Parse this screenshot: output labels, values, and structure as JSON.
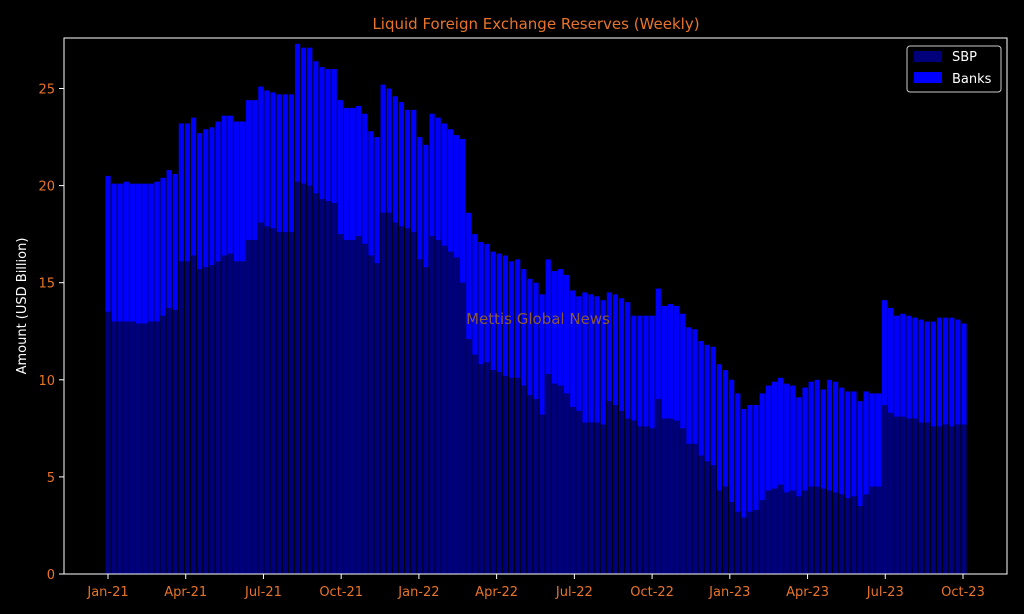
{
  "chart_data": {
    "type": "bar",
    "stacked": true,
    "title": "Liquid Foreign Exchange Reserves (Weekly)",
    "xlabel": "",
    "ylabel": "Amount (USD Billion)",
    "ylim": [
      0,
      27.6
    ],
    "yticks": [
      0,
      5,
      10,
      15,
      20,
      25
    ],
    "xtick_labels": [
      "Jan-21",
      "Apr-21",
      "Jul-21",
      "Oct-21",
      "Jan-22",
      "Apr-22",
      "Jul-22",
      "Oct-22",
      "Jan-23",
      "Apr-23",
      "Jul-23",
      "Oct-23"
    ],
    "legend_position": "top-right",
    "grid": false,
    "watermark": "Mettis Global News",
    "colors": {
      "background": "#000000",
      "axes": "#ffffff",
      "title": "#e8742a",
      "ticks": "#e8742a",
      "watermark": "#8a5a3a",
      "sbp": "#00007a",
      "banks": "#0000ff"
    },
    "series": [
      {
        "name": "SBP",
        "values": [
          13.5,
          13.0,
          13.0,
          13.0,
          13.0,
          12.9,
          12.9,
          13.0,
          13.0,
          13.3,
          13.7,
          13.6,
          16.1,
          16.1,
          16.4,
          15.7,
          15.8,
          15.9,
          16.1,
          16.4,
          16.5,
          16.1,
          16.1,
          17.2,
          17.2,
          18.1,
          17.9,
          17.8,
          17.6,
          17.6,
          17.6,
          20.2,
          20.1,
          20.0,
          19.6,
          19.3,
          19.2,
          19.1,
          17.5,
          17.2,
          17.2,
          17.4,
          17.0,
          16.4,
          16.0,
          18.6,
          18.6,
          18.1,
          17.9,
          17.8,
          17.6,
          16.2,
          15.8,
          17.4,
          17.2,
          16.9,
          16.6,
          16.3,
          15.0,
          12.1,
          11.3,
          10.8,
          10.9,
          10.5,
          10.4,
          10.2,
          10.1,
          10.1,
          9.7,
          9.2,
          9.0,
          8.2,
          10.3,
          9.8,
          9.7,
          9.3,
          8.6,
          8.4,
          7.8,
          7.8,
          7.8,
          7.7,
          8.9,
          8.7,
          8.4,
          8.0,
          7.9,
          7.6,
          7.6,
          7.5,
          9.0,
          8.0,
          8.0,
          7.9,
          7.5,
          6.7,
          6.7,
          6.1,
          5.8,
          5.6,
          4.3,
          4.5,
          3.7,
          3.2,
          2.9,
          3.2,
          3.3,
          3.8,
          4.3,
          4.4,
          4.6,
          4.2,
          4.3,
          4.0,
          4.3,
          4.5,
          4.5,
          4.4,
          4.3,
          4.2,
          4.1,
          3.9,
          4.0,
          3.5,
          4.1,
          4.5,
          4.5,
          8.7,
          8.3,
          8.1,
          8.1,
          8.0,
          8.0,
          7.8,
          7.8,
          7.6,
          7.6,
          7.7,
          7.6,
          7.7,
          7.7
        ]
      },
      {
        "name": "Banks",
        "values": [
          7.0,
          7.1,
          7.1,
          7.2,
          7.1,
          7.2,
          7.2,
          7.1,
          7.2,
          7.1,
          7.1,
          7.0,
          7.1,
          7.1,
          7.1,
          7.0,
          7.1,
          7.1,
          7.2,
          7.2,
          7.1,
          7.2,
          7.2,
          7.2,
          7.2,
          7.0,
          7.0,
          7.0,
          7.1,
          7.1,
          7.1,
          7.1,
          7.0,
          7.1,
          6.8,
          6.8,
          6.8,
          6.9,
          6.9,
          6.8,
          6.8,
          6.7,
          6.7,
          6.4,
          6.5,
          6.6,
          6.4,
          6.5,
          6.4,
          6.1,
          6.3,
          6.3,
          6.3,
          6.3,
          6.3,
          6.3,
          6.3,
          6.3,
          7.4,
          6.5,
          6.2,
          6.3,
          6.1,
          6.1,
          6.1,
          6.2,
          6.0,
          6.1,
          6.0,
          6.0,
          6.0,
          6.2,
          5.9,
          5.8,
          6.0,
          6.1,
          6.0,
          5.9,
          6.7,
          6.6,
          6.5,
          6.4,
          5.6,
          5.7,
          5.8,
          6.0,
          5.4,
          5.7,
          5.7,
          5.8,
          5.7,
          5.8,
          5.9,
          5.9,
          5.9,
          6.0,
          5.9,
          5.9,
          6.0,
          6.1,
          6.5,
          6.0,
          6.3,
          6.1,
          5.6,
          5.5,
          5.4,
          5.5,
          5.4,
          5.5,
          5.5,
          5.6,
          5.4,
          5.1,
          5.3,
          5.4,
          5.5,
          5.1,
          5.7,
          5.7,
          5.5,
          5.5,
          5.4,
          5.4,
          5.3,
          4.8,
          4.8,
          5.4,
          5.4,
          5.2,
          5.3,
          5.3,
          5.2,
          5.3,
          5.2,
          5.4,
          5.6,
          5.5,
          5.6,
          5.4,
          5.2
        ]
      }
    ]
  }
}
